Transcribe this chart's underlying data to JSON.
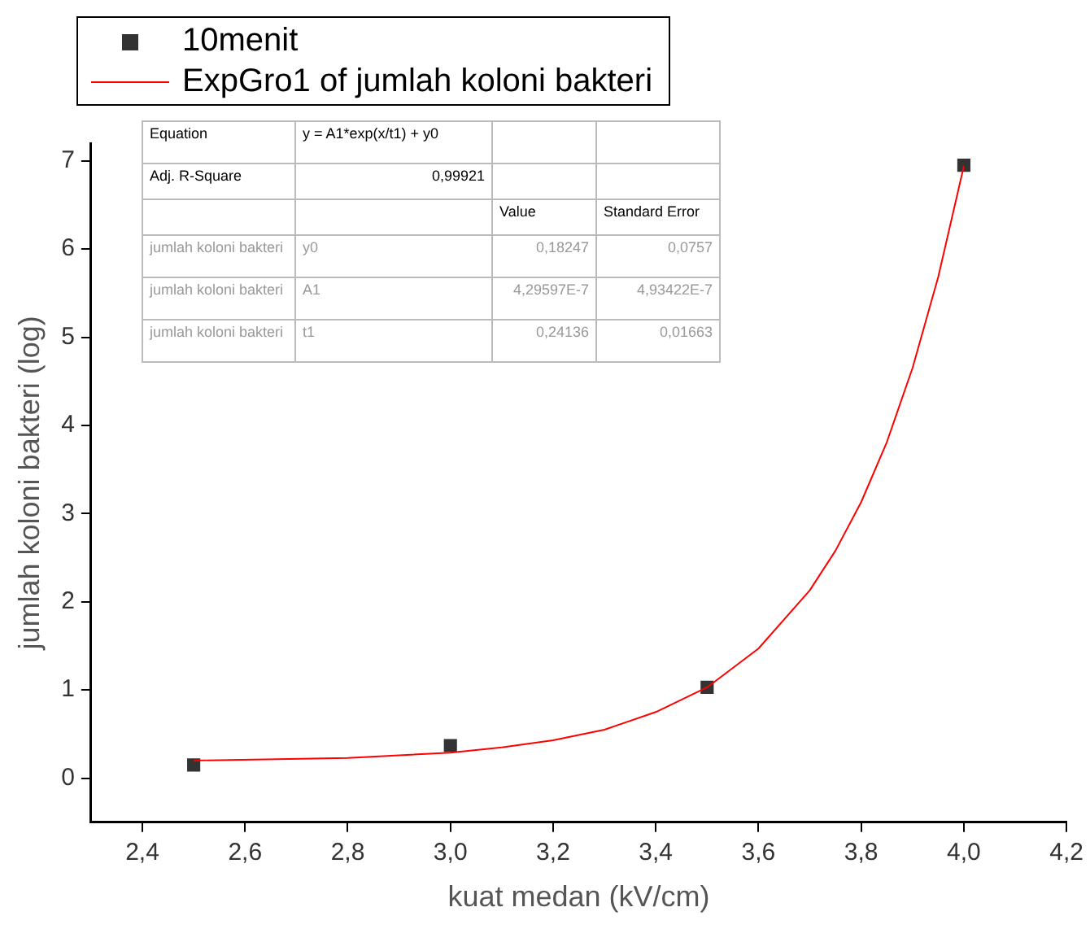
{
  "chart_data": {
    "type": "scatter",
    "xlabel": "kuat medan (kV/cm)",
    "ylabel": "jumlah koloni bakteri (log)",
    "xlim": [
      2.3,
      4.2
    ],
    "ylim": [
      -0.5,
      7.2
    ],
    "xticks": [
      {
        "value": 2.4,
        "label": "2,4"
      },
      {
        "value": 2.6,
        "label": "2,6"
      },
      {
        "value": 2.8,
        "label": "2,8"
      },
      {
        "value": 3.0,
        "label": "3,0"
      },
      {
        "value": 3.2,
        "label": "3,2"
      },
      {
        "value": 3.4,
        "label": "3,4"
      },
      {
        "value": 3.6,
        "label": "3,6"
      },
      {
        "value": 3.8,
        "label": "3,8"
      },
      {
        "value": 4.0,
        "label": "4,0"
      },
      {
        "value": 4.2,
        "label": "4,2"
      }
    ],
    "yticks": [
      0,
      1,
      2,
      3,
      4,
      5,
      6,
      7
    ],
    "grid": false,
    "legend": "top left",
    "marker": "square",
    "series": [
      {
        "name": "10menit",
        "color": "#333333",
        "x": [
          2.5,
          3.0,
          3.5,
          4.0
        ],
        "values": [
          0.15,
          0.37,
          1.03,
          6.95
        ]
      },
      {
        "name": "ExpGro1 of jumlah koloni bakteri",
        "type": "line",
        "color": "#ff0000",
        "marker": "none",
        "line_style": "solid",
        "x": [
          2.5,
          2.8,
          3.0,
          3.1,
          3.2,
          3.3,
          3.4,
          3.5,
          3.6,
          3.7,
          3.75,
          3.8,
          3.85,
          3.9,
          3.95,
          4.0
        ],
        "values": [
          0.2,
          0.23,
          0.29,
          0.35,
          0.43,
          0.55,
          0.75,
          1.03,
          1.47,
          2.13,
          2.58,
          3.13,
          3.81,
          4.65,
          5.68,
          6.94
        ]
      }
    ],
    "annotations": [
      "Equation",
      "y = A1*exp(x/t1) + y0",
      "Adj. R-Square",
      "0,99921",
      "Value",
      "Standard Error",
      "jumlah koloni bakteri",
      "y0",
      "0,18247",
      "0,0757",
      "jumlah koloni bakteri",
      "A1",
      "4,29597E-7",
      "4,93422E-7",
      "jumlah koloni bakteri",
      "t1",
      "0,24136",
      "0,01663"
    ]
  }
}
